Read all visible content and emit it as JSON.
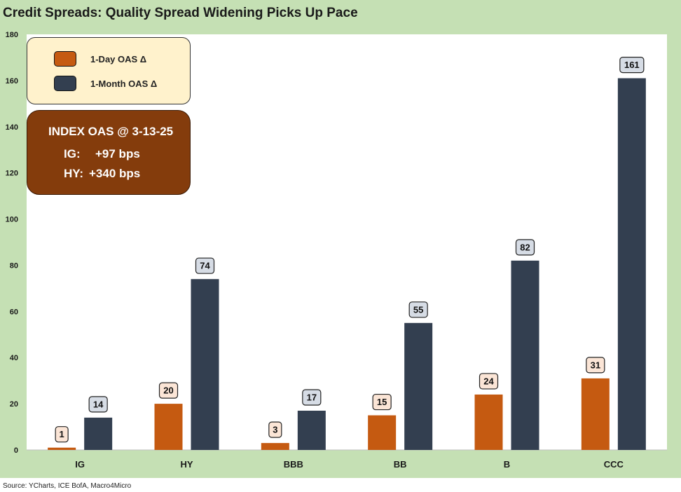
{
  "title": "Credit Spreads: Quality Spread Widening Picks Up Pace",
  "source": "Source: YCharts, ICE BofA, Macro4Micro",
  "colors": {
    "background": "#c5e0b4",
    "series_1day": "#c55a11",
    "series_1month": "#333f50",
    "legend_bg": "#fff2cc",
    "info_bg": "#843c0c",
    "label_bg_1day": "#fbe5d6",
    "label_bg_1month": "#d6dce5"
  },
  "legend": {
    "items": [
      {
        "label": "1-Day OAS Δ"
      },
      {
        "label": "1-Month OAS Δ"
      }
    ]
  },
  "info": {
    "heading": "INDEX OAS @ 3-13-25",
    "ig_label": "IG:",
    "ig_value": "+97 bps",
    "hy_label": "HY:",
    "hy_value": "+340 bps"
  },
  "chart_data": {
    "type": "bar",
    "title": "Credit Spreads: Quality Spread Widening Picks Up Pace",
    "xlabel": "",
    "ylabel": "",
    "categories": [
      "IG",
      "HY",
      "BBB",
      "BB",
      "B",
      "CCC"
    ],
    "series": [
      {
        "name": "1-Day OAS Δ",
        "values": [
          1,
          20,
          3,
          15,
          24,
          31
        ]
      },
      {
        "name": "1-Month OAS Δ",
        "values": [
          14,
          74,
          17,
          55,
          82,
          161
        ]
      }
    ],
    "ylim": [
      0,
      180
    ],
    "yticks": [
      0,
      20,
      40,
      60,
      80,
      100,
      120,
      140,
      160,
      180
    ],
    "grid": false,
    "legend_position": "top-left"
  }
}
